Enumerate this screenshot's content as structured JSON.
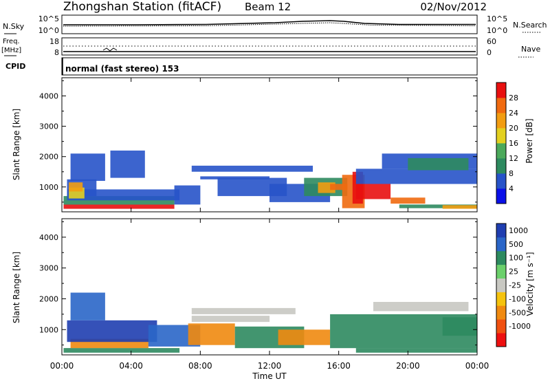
{
  "header": {
    "station": "Zhongshan Station (fitACF)",
    "beam": "Beam 12",
    "date": "02/Nov/2012"
  },
  "panel_labels": {
    "nsky": "N.Sky",
    "nsearch": "N.Search",
    "freq_line1": "Freq.",
    "freq_line2": "[MHz]",
    "nave": "Nave",
    "cpid": "CPID",
    "cpid_value": "normal (fast stereo) 153"
  },
  "top_ticks": {
    "nsky_left": [
      "10^5",
      "10^0"
    ],
    "nsky_right": [
      "10^5",
      "10^0"
    ],
    "freq_left": [
      "18",
      "8"
    ],
    "nave_right": [
      "60",
      "0"
    ]
  },
  "colors": {
    "power_scale": [
      "#0a10e8",
      "#2753c9",
      "#2d8a5f",
      "#4ba95b",
      "#e3d020",
      "#f29d12",
      "#f06a10",
      "#e81010"
    ],
    "velocity_scale": [
      "#ee1010",
      "#f05010",
      "#f08a10",
      "#f5c30e",
      "#c8c8c2",
      "#6bd06b",
      "#2d8a5f",
      "#2a66c8",
      "#1f3eb0"
    ]
  },
  "chart_data": [
    {
      "type": "heatmap",
      "name": "power",
      "x": [
        "00:00",
        "04:00",
        "08:00",
        "12:00",
        "16:00",
        "20:00",
        "00:00"
      ],
      "xlabel": "",
      "ylabel": "Slant Range [km]",
      "y_ticks": [
        "1000",
        "2000",
        "3000",
        "4000"
      ],
      "ylim": [
        180,
        4600
      ],
      "colorbar": {
        "label": "Power [dB]",
        "ticks": [
          "4",
          "8",
          "12",
          "16",
          "20",
          "24",
          "28"
        ]
      },
      "regions": [
        {
          "t0": 0.1,
          "t1": 6.5,
          "r0": 280,
          "r1": 420,
          "c": "#e81010"
        },
        {
          "t0": 0.1,
          "t1": 6.5,
          "r0": 420,
          "r1": 700,
          "c": "#2d8a5f"
        },
        {
          "t0": 0.3,
          "t1": 6.8,
          "r0": 560,
          "r1": 920,
          "c": "#2753c9"
        },
        {
          "t0": 0.3,
          "t1": 2.0,
          "r0": 700,
          "r1": 1250,
          "c": "#2753c9"
        },
        {
          "t0": 0.4,
          "t1": 1.3,
          "r0": 620,
          "r1": 980,
          "c": "#e3d020"
        },
        {
          "t0": 0.4,
          "t1": 1.2,
          "r0": 850,
          "r1": 1150,
          "c": "#f29d12"
        },
        {
          "t0": 0.5,
          "t1": 2.5,
          "r0": 1200,
          "r1": 2100,
          "c": "#2753c9"
        },
        {
          "t0": 2.8,
          "t1": 4.8,
          "r0": 1300,
          "r1": 2200,
          "c": "#2753c9"
        },
        {
          "t0": 6.5,
          "t1": 8.0,
          "r0": 420,
          "r1": 1050,
          "c": "#2753c9"
        },
        {
          "t0": 7.5,
          "t1": 14.5,
          "r0": 1500,
          "r1": 1700,
          "c": "#2753c9"
        },
        {
          "t0": 8.0,
          "t1": 12.0,
          "r0": 1250,
          "r1": 1350,
          "c": "#2753c9"
        },
        {
          "t0": 9.0,
          "t1": 13.0,
          "r0": 700,
          "r1": 1300,
          "c": "#2753c9"
        },
        {
          "t0": 12.0,
          "t1": 15.5,
          "r0": 500,
          "r1": 1100,
          "c": "#2753c9"
        },
        {
          "t0": 14.0,
          "t1": 16.5,
          "r0": 700,
          "r1": 1300,
          "c": "#2d8a5f"
        },
        {
          "t0": 14.8,
          "t1": 15.8,
          "r0": 800,
          "r1": 1150,
          "c": "#f29d12"
        },
        {
          "t0": 15.5,
          "t1": 16.5,
          "r0": 900,
          "r1": 1100,
          "c": "#f06a10"
        },
        {
          "t0": 16.2,
          "t1": 17.5,
          "r0": 300,
          "r1": 1400,
          "c": "#f06a10"
        },
        {
          "t0": 16.8,
          "t1": 17.4,
          "r0": 450,
          "r1": 1500,
          "c": "#e81010"
        },
        {
          "t0": 17.0,
          "t1": 19.0,
          "r0": 600,
          "r1": 1100,
          "c": "#e81010"
        },
        {
          "t0": 19.0,
          "t1": 21.0,
          "r0": 450,
          "r1": 650,
          "c": "#f06a10"
        },
        {
          "t0": 19.5,
          "t1": 24.0,
          "r0": 300,
          "r1": 420,
          "c": "#2d8a5f"
        },
        {
          "t0": 22.0,
          "t1": 24.0,
          "r0": 280,
          "r1": 400,
          "c": "#f29d12"
        },
        {
          "t0": 17.0,
          "t1": 24.0,
          "r0": 1100,
          "r1": 1600,
          "c": "#2753c9"
        },
        {
          "t0": 18.5,
          "t1": 24.0,
          "r0": 1600,
          "r1": 2100,
          "c": "#2753c9"
        },
        {
          "t0": 20.0,
          "t1": 23.5,
          "r0": 1550,
          "r1": 1950,
          "c": "#2d8a5f"
        }
      ]
    },
    {
      "type": "heatmap",
      "name": "velocity",
      "x": [
        "00:00",
        "04:00",
        "08:00",
        "12:00",
        "16:00",
        "20:00",
        "00:00"
      ],
      "xlabel": "Time UT",
      "ylabel": "Slant Range [km]",
      "y_ticks": [
        "1000",
        "2000",
        "3000",
        "4000"
      ],
      "ylim": [
        180,
        4600
      ],
      "colorbar": {
        "label": "Velocity [m s⁻¹]",
        "ticks": [
          "1000",
          "500",
          "100",
          "25",
          "-25",
          "-100",
          "-500",
          "-1000"
        ]
      },
      "regions": [
        {
          "t0": 0.1,
          "t1": 6.8,
          "r0": 250,
          "r1": 400,
          "c": "#2d8a5f"
        },
        {
          "t0": 0.5,
          "t1": 5.0,
          "r0": 400,
          "r1": 700,
          "c": "#f08a10"
        },
        {
          "t0": 0.3,
          "t1": 5.5,
          "r0": 600,
          "r1": 1300,
          "c": "#1f3eb0"
        },
        {
          "t0": 0.5,
          "t1": 2.5,
          "r0": 1300,
          "r1": 2200,
          "c": "#2a66c8"
        },
        {
          "t0": 5.0,
          "t1": 8.0,
          "r0": 450,
          "r1": 1150,
          "c": "#2a66c8"
        },
        {
          "t0": 7.3,
          "t1": 10.0,
          "r0": 500,
          "r1": 1200,
          "c": "#f08a10"
        },
        {
          "t0": 10.0,
          "t1": 14.0,
          "r0": 400,
          "r1": 1100,
          "c": "#2d8a5f"
        },
        {
          "t0": 12.5,
          "t1": 15.5,
          "r0": 500,
          "r1": 1000,
          "c": "#f08a10"
        },
        {
          "t0": 7.5,
          "t1": 13.5,
          "r0": 1500,
          "r1": 1700,
          "c": "#c8c8c2"
        },
        {
          "t0": 7.5,
          "t1": 12.0,
          "r0": 1250,
          "r1": 1450,
          "c": "#c8c8c2"
        },
        {
          "t0": 15.5,
          "t1": 24.0,
          "r0": 400,
          "r1": 1500,
          "c": "#2d8a5f"
        },
        {
          "t0": 17.0,
          "t1": 24.0,
          "r0": 250,
          "r1": 400,
          "c": "#2d8a5f"
        },
        {
          "t0": 18.0,
          "t1": 23.5,
          "r0": 1600,
          "r1": 1900,
          "c": "#c8c8c2"
        },
        {
          "t0": 22.0,
          "t1": 24.0,
          "r0": 800,
          "r1": 1400,
          "c": "#2d8a5f"
        }
      ]
    }
  ]
}
